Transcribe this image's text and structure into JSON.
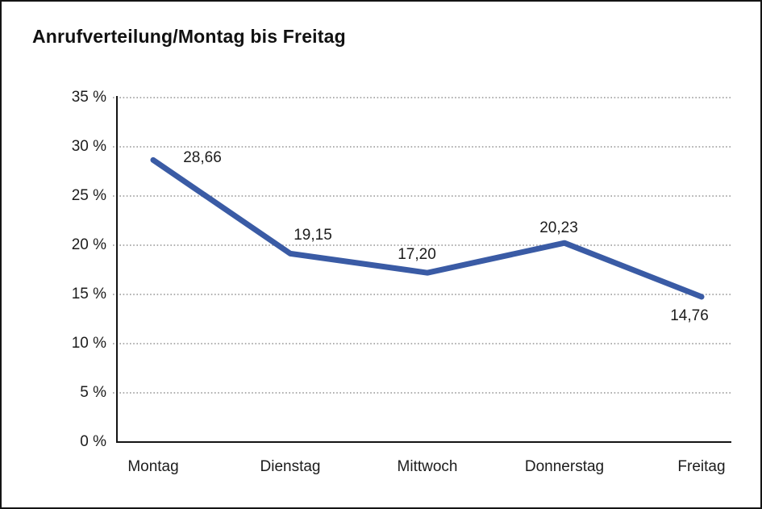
{
  "title": "Anrufverteilung/Montag bis Freitag",
  "chart_data": {
    "type": "line",
    "title": "Anrufverteilung/Montag bis Freitag",
    "categories": [
      "Montag",
      "Dienstag",
      "Mittwoch",
      "Donnerstag",
      "Freitag"
    ],
    "values": [
      28.66,
      19.15,
      17.2,
      20.23,
      14.76
    ],
    "point_labels": [
      "28,66",
      "19,15",
      "17,20",
      "20,23",
      "14,76"
    ],
    "ytick_labels": [
      "0 %",
      "5 %",
      "10 %",
      "15 %",
      "20 %",
      "25 %",
      "30 %",
      "35 %"
    ],
    "ylim": [
      0,
      35
    ],
    "ytick_step": 5,
    "xlabel": "",
    "ylabel": "",
    "grid": "horizontal-dotted",
    "legend": "none",
    "line_color": "#3A5BA5",
    "axis_color": "#141414",
    "grid_color": "#7f7f7f",
    "text_color": "#1c1c1c"
  }
}
